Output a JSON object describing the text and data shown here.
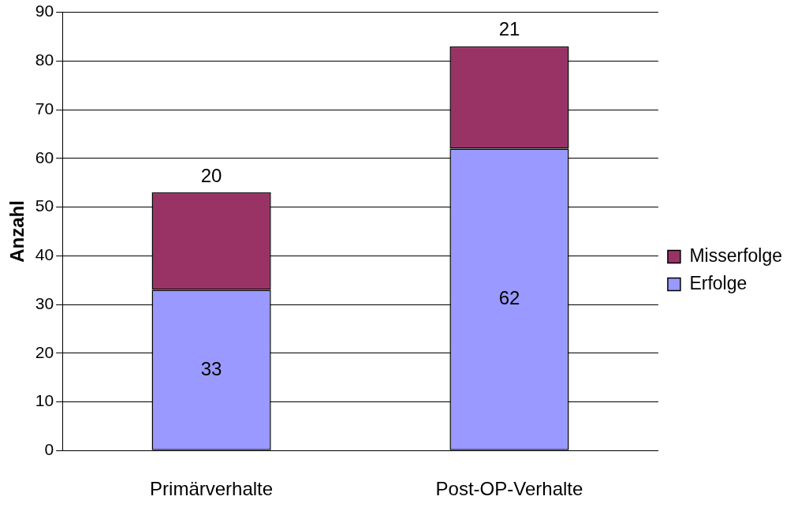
{
  "chart_data": {
    "type": "bar",
    "stacked": true,
    "ylabel": "Anzahl",
    "categories": [
      "Primärverhalte",
      "Post-OP-Verhalte"
    ],
    "series": [
      {
        "name": "Erfolge",
        "color": "#9999ff",
        "values": [
          33,
          62
        ]
      },
      {
        "name": "Misserfolge",
        "color": "#993366",
        "values": [
          20,
          21
        ]
      }
    ],
    "ylim": [
      0,
      90
    ],
    "yticks": [
      0,
      10,
      20,
      30,
      40,
      50,
      60,
      70,
      80,
      90
    ],
    "grid": "y",
    "legend": "right",
    "data_labels": true
  }
}
